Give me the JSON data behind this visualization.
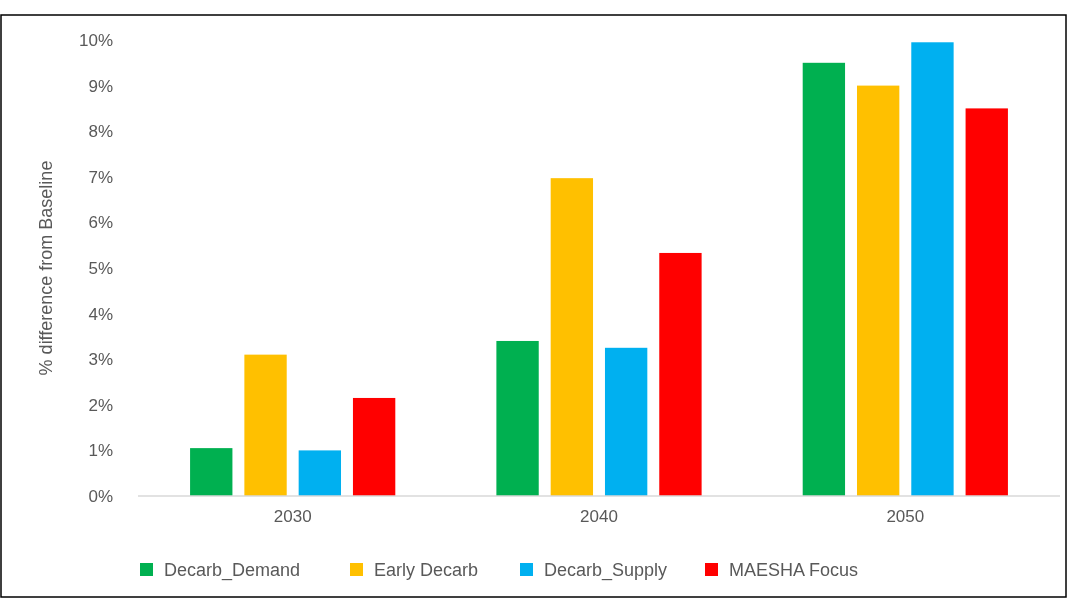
{
  "chart_data": {
    "type": "bar",
    "ylabel": "% difference from Baseline",
    "categories": [
      "2030",
      "2040",
      "2050"
    ],
    "series": [
      {
        "name": "Decarb_Demand",
        "color": "#00b050",
        "values": [
          1.05,
          3.4,
          9.5
        ]
      },
      {
        "name": "Early Decarb",
        "color": "#ffc000",
        "values": [
          3.1,
          6.97,
          9.0
        ]
      },
      {
        "name": "Decarb_Supply",
        "color": "#00b0f0",
        "values": [
          1.0,
          3.25,
          9.95
        ]
      },
      {
        "name": "MAESHA Focus",
        "color": "#ff0000",
        "values": [
          2.15,
          5.33,
          8.5
        ]
      }
    ],
    "ylim": [
      0,
      10
    ],
    "yticks": [
      {
        "value": 0,
        "label": "0%"
      },
      {
        "value": 1,
        "label": "1%"
      },
      {
        "value": 2,
        "label": "2%"
      },
      {
        "value": 3,
        "label": "3%"
      },
      {
        "value": 4,
        "label": "4%"
      },
      {
        "value": 5,
        "label": "5%"
      },
      {
        "value": 6,
        "label": "6%"
      },
      {
        "value": 7,
        "label": "7%"
      },
      {
        "value": 8,
        "label": "8%"
      },
      {
        "value": 9,
        "label": "9%"
      },
      {
        "value": 10,
        "label": "10%"
      }
    ],
    "grid": false,
    "legend": "bottom"
  }
}
